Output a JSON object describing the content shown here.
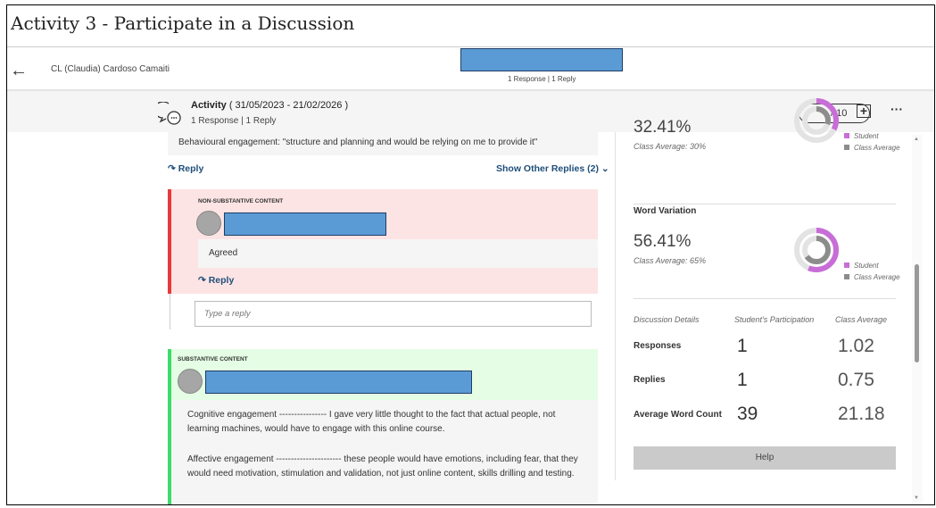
{
  "page": {
    "title": "Activity 3 - Participate in a Discussion"
  },
  "student": {
    "name": "CL (Claudia) Cardoso Camaiti",
    "counts": "1 Response | 1 Reply"
  },
  "activity": {
    "title": "Activity",
    "dates": "( 31/05/2023 - 21/02/2026 )",
    "counts": "1 Response | 1 Reply",
    "grade": "-- / 10"
  },
  "thread": {
    "quoted_text": "Behavioural engagement: \"structure and planning and would be relying on me to provide it\"",
    "reply_label": "Reply",
    "show_other": "Show Other Replies (2)",
    "non_sub": {
      "tag": "NON-SUBSTANTIVE CONTENT",
      "text": "Agreed",
      "reply_label": "Reply"
    },
    "reply_placeholder": "Type a reply",
    "sub": {
      "tag": "SUBSTANTIVE CONTENT",
      "paragraphs": [
        "Cognitive engagement ---------------- I gave very little thought to the fact that actual people, not learning machines, would have to engage with this online course.",
        "Affective engagement ---------------------- these people would have emotions, including fear, that they would need motivation, stimulation and validation, not just online content, skills drilling and testing."
      ]
    }
  },
  "metrics": [
    {
      "label": "",
      "value": "32.41%",
      "class_avg": "Class Average: 30%",
      "student_pct": 32.41,
      "avg_pct": 30
    },
    {
      "label": "Word Variation",
      "value": "56.41%",
      "class_avg": "Class Average: 65%",
      "student_pct": 56.41,
      "avg_pct": 65
    }
  ],
  "legend": {
    "student": "Student",
    "class_average": "Class Average"
  },
  "colors": {
    "student": "#c86dd7",
    "class_average": "#8c8c8c",
    "track": "#e3e3e3",
    "non_substantive": "#e8393b",
    "substantive": "#3ddc6a"
  },
  "details": {
    "headers": [
      "Discussion Details",
      "Student's Participation",
      "Class Average"
    ],
    "rows": [
      {
        "label": "Responses",
        "student": "1",
        "avg": "1.02"
      },
      {
        "label": "Replies",
        "student": "1",
        "avg": "0.75"
      },
      {
        "label": "Average Word Count",
        "student": "39",
        "avg": "21.18"
      }
    ],
    "help": "Help"
  }
}
